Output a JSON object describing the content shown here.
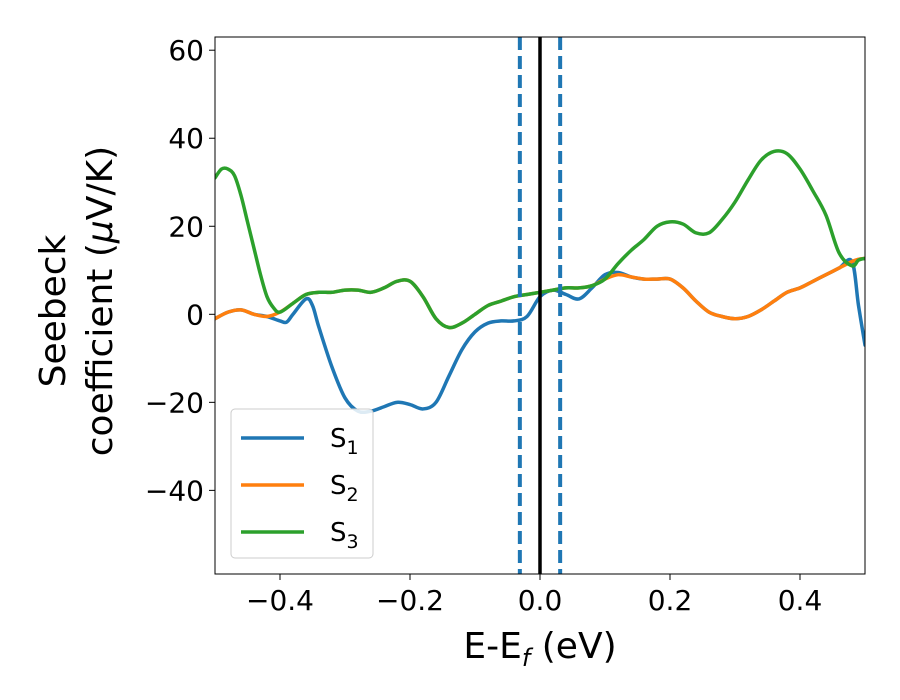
{
  "chart_data": {
    "type": "line",
    "xlabel": "E-E_f (eV)",
    "xlabel_parts": {
      "base": "E-E",
      "sub": "f",
      "unit": " (eV)"
    },
    "ylabel_line1": "Seebeck",
    "ylabel_line2_base": "coefficient  (",
    "ylabel_mu": "μ",
    "ylabel_line2_rest": "V/K)",
    "xlim": [
      -0.5,
      0.5
    ],
    "ylim": [
      -59,
      63
    ],
    "x_ticks": [
      -0.4,
      -0.2,
      0.0,
      0.2,
      0.4
    ],
    "x_tick_labels": [
      "−0.4",
      "−0.2",
      "0.0",
      "0.2",
      "0.4"
    ],
    "y_ticks": [
      -40,
      -20,
      0,
      20,
      40,
      60
    ],
    "y_tick_labels": [
      "−40",
      "−20",
      "0",
      "20",
      "40",
      "60"
    ],
    "grid": false,
    "legend_position": "lower-left",
    "vertical_lines": [
      {
        "x": -0.031,
        "style": "dashed",
        "color": "#1f77b4"
      },
      {
        "x": 0.0,
        "style": "solid",
        "color": "#000000"
      },
      {
        "x": 0.031,
        "style": "dashed",
        "color": "#1f77b4"
      }
    ],
    "series": [
      {
        "name": "S1",
        "label_base": "S",
        "label_sub": "1",
        "color": "#1f77b4",
        "x": [
          -0.5,
          -0.48,
          -0.46,
          -0.44,
          -0.42,
          -0.4,
          -0.39,
          -0.38,
          -0.36,
          -0.35,
          -0.34,
          -0.32,
          -0.3,
          -0.28,
          -0.26,
          -0.24,
          -0.22,
          -0.2,
          -0.18,
          -0.16,
          -0.14,
          -0.12,
          -0.1,
          -0.08,
          -0.06,
          -0.04,
          -0.02,
          0.0,
          0.02,
          0.04,
          0.06,
          0.08,
          0.1,
          0.12,
          0.14,
          0.16,
          0.18,
          0.2,
          0.22,
          0.24,
          0.26,
          0.28,
          0.3,
          0.32,
          0.34,
          0.36,
          0.38,
          0.4,
          0.42,
          0.44,
          0.46,
          0.48,
          0.49,
          0.5
        ],
        "y": [
          -1,
          0.5,
          1,
          0,
          -0.5,
          -1.5,
          -1.8,
          0,
          3.5,
          2,
          -3,
          -12,
          -19,
          -22,
          -22,
          -21,
          -20,
          -20.5,
          -21.5,
          -20,
          -14,
          -8,
          -4,
          -2,
          -1.5,
          -1.5,
          -0.5,
          4,
          5.5,
          4.5,
          3.5,
          6,
          9,
          9.5,
          8.5,
          8,
          8,
          8,
          6,
          3,
          0.5,
          -0.5,
          -1,
          -0.5,
          1,
          3,
          5,
          6,
          7.5,
          9,
          10.5,
          12,
          2,
          -7
        ]
      },
      {
        "name": "S2",
        "label_base": "S",
        "label_sub": "2",
        "color": "#ff7f0e",
        "x": [
          -0.5,
          -0.48,
          -0.46,
          -0.44,
          -0.42,
          -0.4,
          -0.38,
          -0.36,
          -0.34,
          -0.32,
          -0.3,
          -0.28,
          -0.26,
          -0.24,
          -0.22,
          -0.2,
          -0.18,
          -0.16,
          -0.14,
          -0.12,
          -0.1,
          -0.08,
          -0.06,
          -0.04,
          -0.02,
          0.0,
          0.02,
          0.04,
          0.06,
          0.08,
          0.1,
          0.12,
          0.14,
          0.16,
          0.18,
          0.2,
          0.22,
          0.24,
          0.26,
          0.28,
          0.3,
          0.32,
          0.34,
          0.36,
          0.38,
          0.4,
          0.42,
          0.44,
          0.46,
          0.48,
          0.49,
          0.5
        ],
        "y": [
          -1,
          0.5,
          1,
          0,
          -0.5,
          0.5,
          2.5,
          4.5,
          5,
          5,
          5.5,
          5.5,
          5,
          6,
          7.5,
          7.5,
          4,
          -1,
          -3,
          -2,
          0,
          2,
          3,
          4,
          4.5,
          5,
          5.5,
          6,
          6,
          6.5,
          8,
          9,
          8.5,
          8,
          8,
          8,
          6,
          3,
          0.5,
          -0.5,
          -1,
          -0.5,
          1,
          3,
          5,
          6,
          7.5,
          9,
          10.5,
          12,
          12.5,
          12.7
        ]
      },
      {
        "name": "S3",
        "label_base": "S",
        "label_sub": "3",
        "color": "#2ca02c",
        "x": [
          -0.5,
          -0.49,
          -0.48,
          -0.47,
          -0.46,
          -0.45,
          -0.44,
          -0.43,
          -0.42,
          -0.41,
          -0.4,
          -0.38,
          -0.36,
          -0.34,
          -0.32,
          -0.3,
          -0.28,
          -0.26,
          -0.24,
          -0.22,
          -0.2,
          -0.18,
          -0.16,
          -0.14,
          -0.12,
          -0.1,
          -0.08,
          -0.06,
          -0.04,
          -0.02,
          0.0,
          0.02,
          0.04,
          0.06,
          0.08,
          0.1,
          0.12,
          0.14,
          0.16,
          0.18,
          0.2,
          0.22,
          0.24,
          0.26,
          0.28,
          0.3,
          0.32,
          0.34,
          0.36,
          0.38,
          0.4,
          0.42,
          0.44,
          0.46,
          0.48,
          0.49,
          0.5
        ],
        "y": [
          31,
          33,
          33,
          31.5,
          27,
          21,
          15,
          9,
          4,
          1.5,
          0.5,
          2.5,
          4.5,
          5,
          5,
          5.5,
          5.5,
          5,
          6,
          7.5,
          7.5,
          4,
          -1,
          -3,
          -2,
          0,
          2,
          3,
          4,
          4.5,
          5,
          5.5,
          6,
          6,
          6.5,
          8,
          11.5,
          14.5,
          17,
          20,
          21,
          20.5,
          18.5,
          18.5,
          21.5,
          25.5,
          30.5,
          35,
          37,
          36.5,
          33,
          28,
          22.5,
          14,
          11,
          12.3,
          12.7
        ]
      }
    ]
  }
}
